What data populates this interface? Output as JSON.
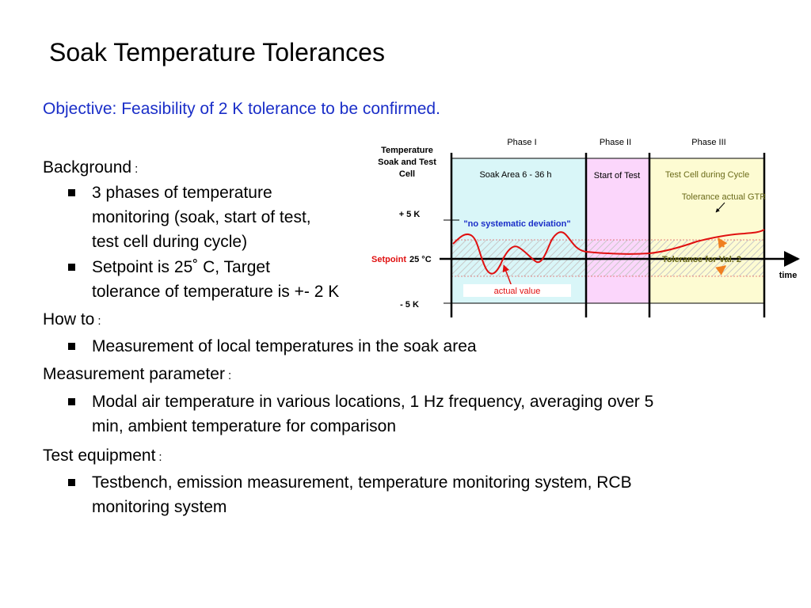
{
  "slide": {
    "title": "Soak Temperature Tolerances",
    "objective": "Objective: Feasibility of 2 K tolerance to be confirmed.",
    "sections": {
      "background": {
        "heading": "Background",
        "colon": ":",
        "bullet1_line1": "3 phases of temperature",
        "bullet1_line2": "monitoring (soak, start of test,",
        "bullet1_line3": "test cell during cycle)",
        "bullet2_line1": "Setpoint is 25˚ C, Target",
        "bullet2_line2": "tolerance of temperature is +- 2 K"
      },
      "how_to": {
        "heading": "How to",
        "colon": ":",
        "bullet1": "Measurement of local temperatures in the soak area"
      },
      "measurement_parameter": {
        "heading": "Measurement parameter",
        "colon": ":",
        "bullet1_line1": "Modal air temperature in various locations, 1 Hz frequency, averaging over 5",
        "bullet1_line2": "min, ambient temperature for comparison"
      },
      "test_equipment": {
        "heading": "Test equipment",
        "colon": ":",
        "bullet1_line1": "Testbench, emission measurement, temperature monitoring system, RCB",
        "bullet1_line2": "monitoring system"
      }
    }
  },
  "diagram": {
    "ylabel_line1": "Temperature",
    "ylabel_line2": "Soak and Test",
    "ylabel_line3": "Cell",
    "phase1": "Phase I",
    "phase2": "Phase II",
    "phase3": "Phase III",
    "area1": "Soak Area 6 - 36 h",
    "area2": "Start of Test",
    "area3": "Test Cell during Cycle",
    "plus5": "+ 5 K",
    "minus5": "- 5 K",
    "setpoint_label": "Setpoint",
    "setpoint_value": "25 °C",
    "no_dev": "\"no systematic deviation\"",
    "actual_value": "actual value",
    "tol_gtr": "Tolerance actual GTR",
    "tol_val2": "Tolerance for Val. 2",
    "time": "time",
    "colors": {
      "phase1_fill": "#d9f6f8",
      "phase2_fill": "#fbd6fb",
      "phase3_fill": "#fdfbd2",
      "curve": "#e01010",
      "arrow_orange": "#f08020",
      "label_blue": "#1a2ec8",
      "label_red": "#e01010",
      "label_olive": "#6b6b1a"
    }
  }
}
